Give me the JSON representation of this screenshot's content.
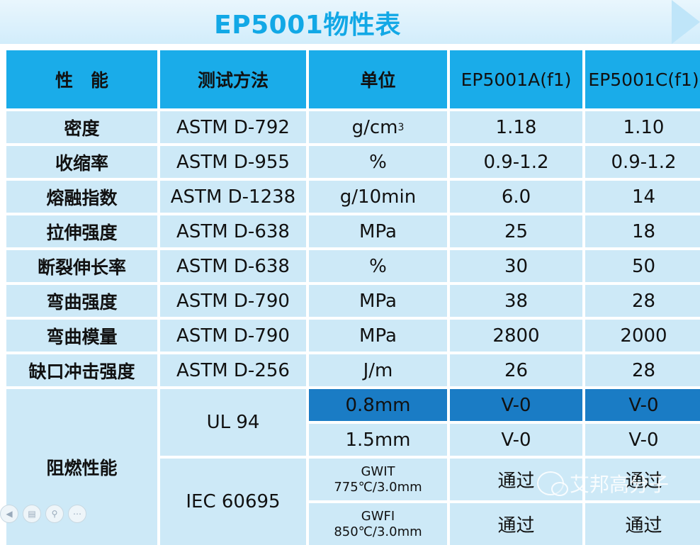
{
  "title": "EP5001物性表",
  "headers": [
    "性　能",
    "测试方法",
    "单位",
    "EP5001A(f1)",
    "EP5001C(f1)"
  ],
  "rows": [
    {
      "property": "密度",
      "method": "ASTM D-792",
      "unit_base": "g/cm",
      "unit_sup": "3",
      "a": "1.18",
      "c": "1.10"
    },
    {
      "property": "收缩率",
      "method": "ASTM D-955",
      "unit": "%",
      "a": "0.9-1.2",
      "c": "0.9-1.2"
    },
    {
      "property": "熔融指数",
      "method": "ASTM D-1238",
      "unit": "g/10min",
      "a": "6.0",
      "c": "14"
    },
    {
      "property": "拉伸强度",
      "method": "ASTM D-638",
      "unit": "MPa",
      "a": "25",
      "c": "18"
    },
    {
      "property": "断裂伸长率",
      "method": "ASTM D-638",
      "unit": "%",
      "a": "30",
      "c": "50"
    },
    {
      "property": "弯曲强度",
      "method": "ASTM D-790",
      "unit": "MPa",
      "a": "38",
      "c": "28"
    },
    {
      "property": "弯曲模量",
      "method": "ASTM D-790",
      "unit": "MPa",
      "a": "2800",
      "c": "2000"
    },
    {
      "property": "缺口冲击强度",
      "method": "ASTM D-256",
      "unit": "J/m",
      "a": "26",
      "c": "28"
    }
  ],
  "flame": {
    "property": "阻燃性能",
    "ul_method": "UL 94",
    "ul_rows": [
      {
        "unit": "0.8mm",
        "a": "V-0",
        "c": "V-0"
      },
      {
        "unit": "1.5mm",
        "a": "V-0",
        "c": "V-0"
      }
    ],
    "iec_method": "IEC 60695",
    "iec_rows": [
      {
        "unit_line1": "GWIT",
        "unit_line2": "775℃/3.0mm",
        "a": "通过",
        "c": "通过"
      },
      {
        "unit_line1": "GWFI",
        "unit_line2": "850℃/3.0mm",
        "a": "通过",
        "c": "通过"
      }
    ]
  },
  "watermark": "艾邦高分子",
  "colors": {
    "header": "#1aace9",
    "cell": "#cde9f7",
    "highlight": "#1a7cc5",
    "title": "#12a8e6"
  }
}
